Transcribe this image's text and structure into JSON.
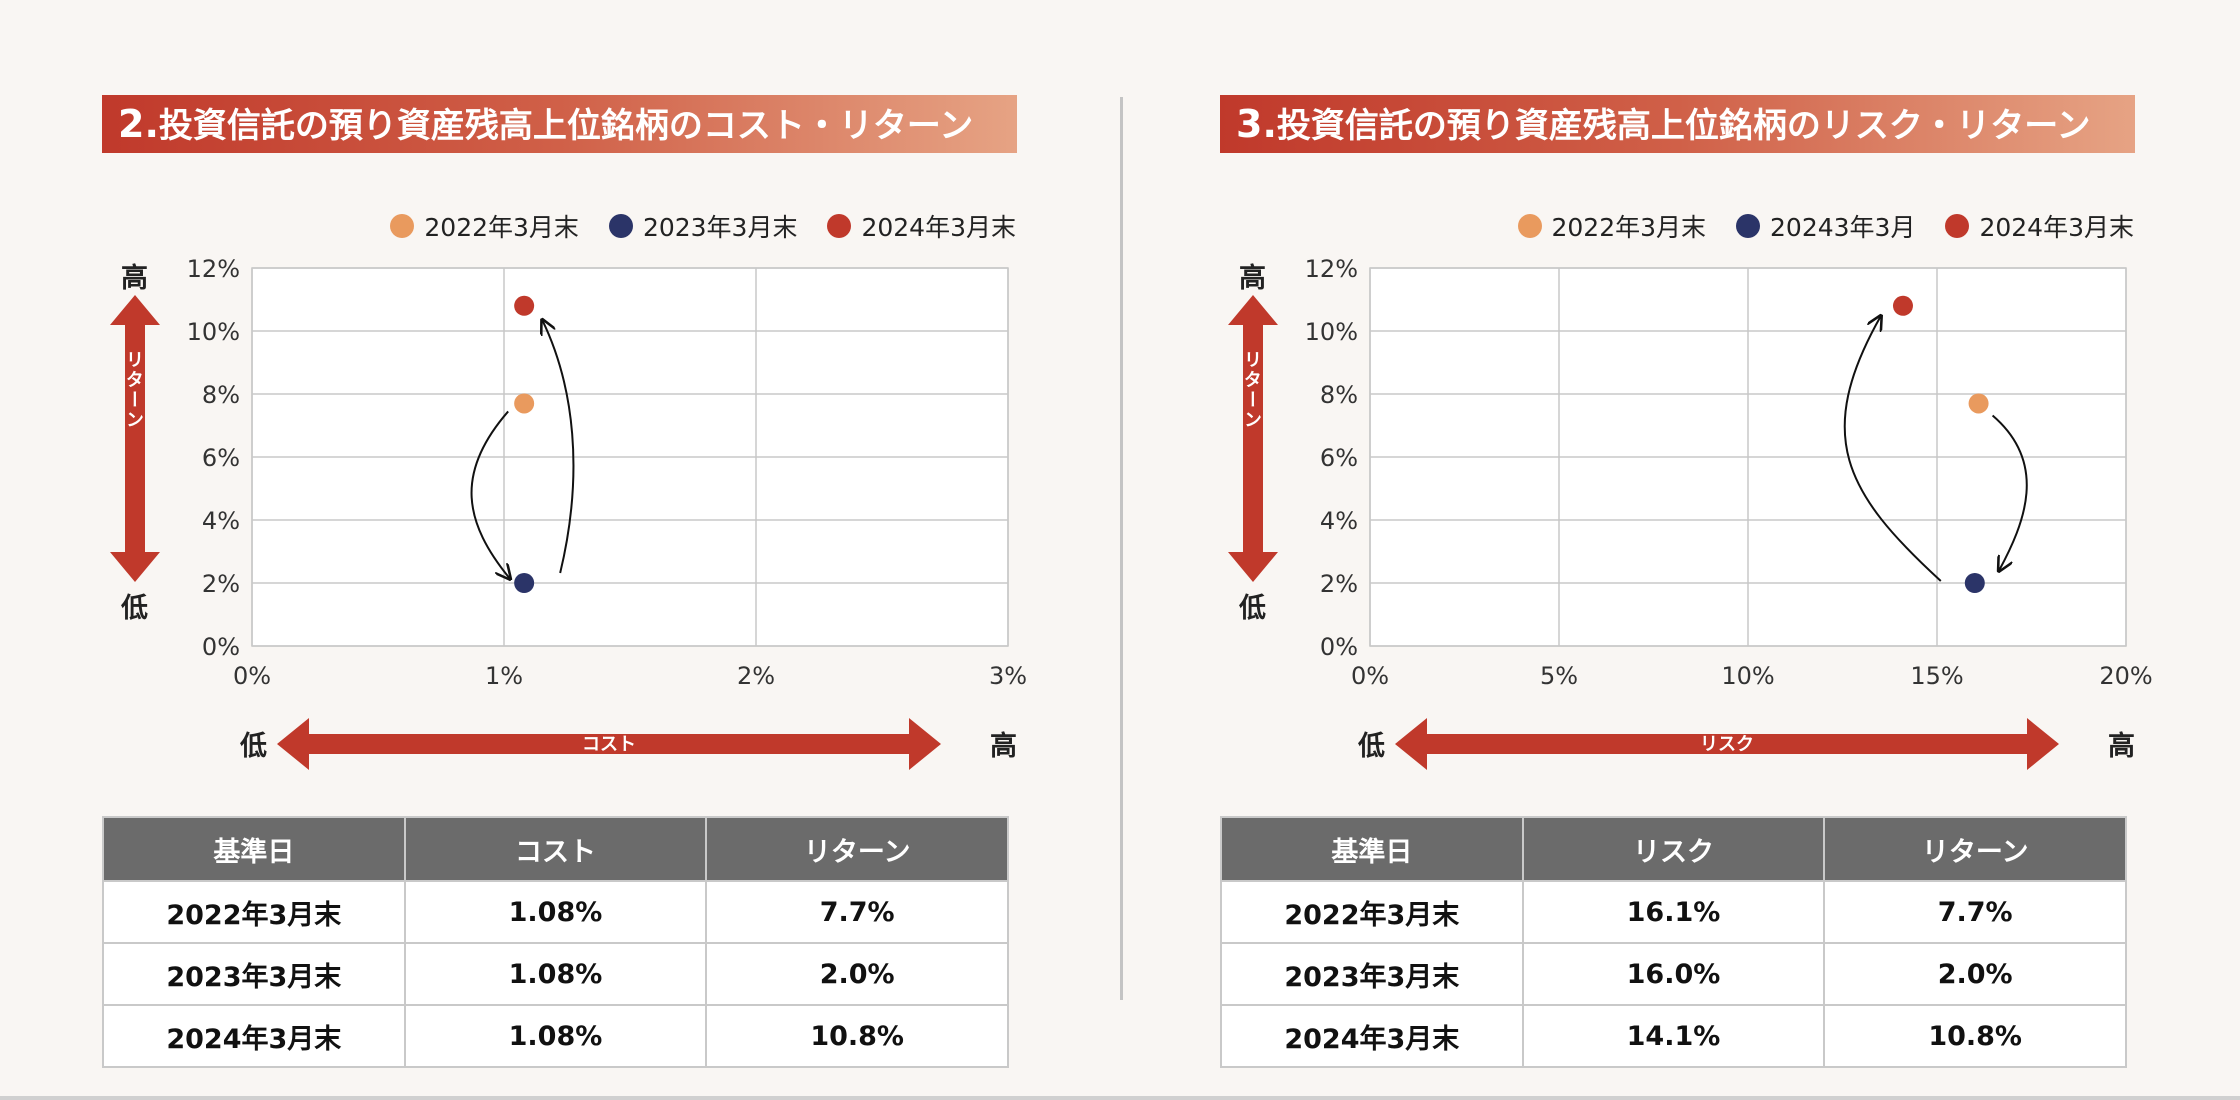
{
  "colors": {
    "series_2022": "#e99a5e",
    "series_2023": "#2b3468",
    "series_2024": "#c0392b",
    "arrow": "#c0392b"
  },
  "divider": true,
  "panels": [
    {
      "title_num": "2.",
      "title": "投資信託の預り資産残高上位銘柄のコスト・リターン",
      "legend": [
        "2022年3月末",
        "2023年3月末",
        "2024年3月末"
      ],
      "y_high": "高",
      "y_low": "低",
      "y_arrow": "リターン",
      "x_low": "低",
      "x_high": "高",
      "x_arrow": "コスト",
      "table": {
        "headers": [
          "基準日",
          "コスト",
          "リターン"
        ],
        "rows": [
          [
            "2022年3月末",
            "1.08%",
            "7.7%"
          ],
          [
            "2023年3月末",
            "1.08%",
            "2.0%"
          ],
          [
            "2024年3月末",
            "1.08%",
            "10.8%"
          ]
        ]
      }
    },
    {
      "title_num": "3.",
      "title": "投資信託の預り資産残高上位銘柄のリスク・リターン",
      "legend": [
        "2022年3月末",
        "20243年3月",
        "2024年3月末"
      ],
      "y_high": "高",
      "y_low": "低",
      "y_arrow": "リターン",
      "x_low": "低",
      "x_high": "高",
      "x_arrow": "リスク",
      "table": {
        "headers": [
          "基準日",
          "リスク",
          "リターン"
        ],
        "rows": [
          [
            "2022年3月末",
            "16.1%",
            "7.7%"
          ],
          [
            "2023年3月末",
            "16.0%",
            "2.0%"
          ],
          [
            "2024年3月末",
            "14.1%",
            "10.8%"
          ]
        ]
      }
    }
  ],
  "chart_data": [
    {
      "type": "scatter",
      "x_ticks": [
        "0%",
        "1%",
        "2%",
        "3%"
      ],
      "y_ticks": [
        "0%",
        "2%",
        "4%",
        "6%",
        "8%",
        "10%",
        "12%"
      ],
      "xlim": [
        0,
        3
      ],
      "ylim": [
        0,
        12
      ],
      "grid": true,
      "legend_position": "top-right",
      "series": [
        {
          "name": "2022年3月末",
          "x": 1.08,
          "y": 7.7
        },
        {
          "name": "2023年3月末",
          "x": 1.08,
          "y": 2.0
        },
        {
          "name": "2024年3月末",
          "x": 1.08,
          "y": 10.8
        }
      ]
    },
    {
      "type": "scatter",
      "x_ticks": [
        "0%",
        "5%",
        "10%",
        "15%",
        "20%"
      ],
      "y_ticks": [
        "0%",
        "2%",
        "4%",
        "6%",
        "8%",
        "10%",
        "12%"
      ],
      "xlim": [
        0,
        20
      ],
      "ylim": [
        0,
        12
      ],
      "grid": true,
      "legend_position": "top-right",
      "series": [
        {
          "name": "2022年3月末",
          "x": 16.1,
          "y": 7.7
        },
        {
          "name": "20243年3月",
          "x": 16.0,
          "y": 2.0
        },
        {
          "name": "2024年3月末",
          "x": 14.1,
          "y": 10.8
        }
      ]
    }
  ]
}
